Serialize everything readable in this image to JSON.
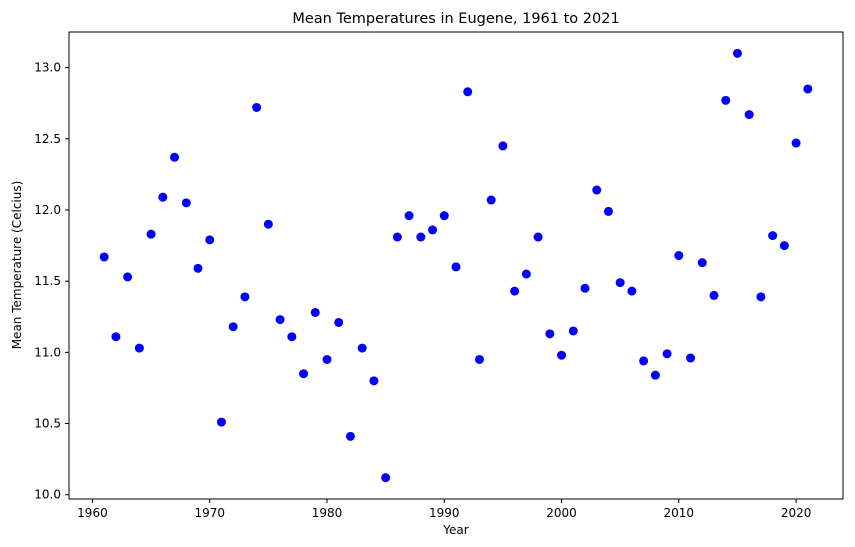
{
  "chart_data": {
    "type": "scatter",
    "title": "Mean Temperatures in Eugene, 1961 to 2021",
    "xlabel": "Year",
    "ylabel": "Mean Temperature (Celcius)",
    "xlim": [
      1958,
      2024
    ],
    "ylim": [
      9.97,
      13.25
    ],
    "xticks": [
      1960,
      1970,
      1980,
      1990,
      2000,
      2010,
      2020
    ],
    "yticks": [
      10.0,
      10.5,
      11.0,
      11.5,
      12.0,
      12.5,
      13.0
    ],
    "xtick_labels": [
      "1960",
      "1970",
      "1980",
      "1990",
      "2000",
      "2010",
      "2020"
    ],
    "ytick_labels": [
      "10.0",
      "10.5",
      "11.0",
      "11.5",
      "12.0",
      "12.5",
      "13.0"
    ],
    "grid": false,
    "marker_color": "#0000ff",
    "x": [
      1961,
      1962,
      1963,
      1964,
      1965,
      1966,
      1967,
      1968,
      1969,
      1970,
      1971,
      1972,
      1973,
      1974,
      1975,
      1976,
      1977,
      1978,
      1979,
      1980,
      1981,
      1982,
      1983,
      1984,
      1985,
      1986,
      1987,
      1988,
      1989,
      1990,
      1991,
      1992,
      1993,
      1994,
      1995,
      1996,
      1997,
      1998,
      1999,
      2000,
      2001,
      2002,
      2003,
      2004,
      2005,
      2006,
      2007,
      2008,
      2009,
      2010,
      2011,
      2012,
      2013,
      2014,
      2015,
      2016,
      2017,
      2018,
      2019,
      2020,
      2021
    ],
    "y": [
      11.67,
      11.11,
      11.53,
      11.03,
      11.83,
      12.09,
      12.37,
      12.05,
      11.59,
      11.79,
      10.51,
      11.18,
      11.39,
      12.72,
      11.9,
      11.23,
      11.11,
      10.85,
      11.28,
      10.95,
      11.21,
      10.41,
      11.03,
      10.8,
      10.12,
      11.81,
      11.96,
      11.81,
      11.86,
      11.96,
      11.6,
      12.83,
      10.95,
      12.07,
      12.45,
      11.43,
      11.55,
      11.81,
      11.13,
      10.98,
      11.15,
      11.45,
      12.14,
      11.99,
      11.49,
      11.43,
      10.94,
      10.84,
      10.99,
      11.68,
      10.96,
      11.63,
      11.4,
      12.77,
      13.1,
      12.67,
      11.39,
      11.82,
      11.75,
      12.47,
      12.85
    ]
  }
}
